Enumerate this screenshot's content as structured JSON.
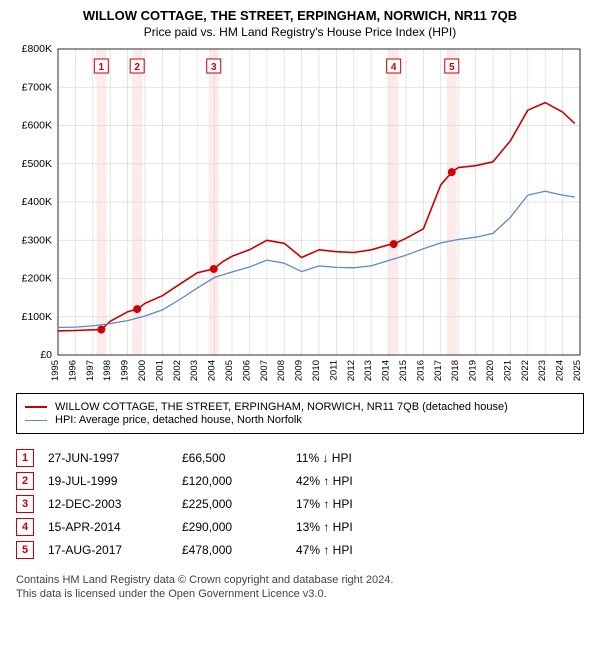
{
  "title": "WILLOW COTTAGE, THE STREET, ERPINGHAM, NORWICH, NR11 7QB",
  "subtitle": "Price paid vs. HM Land Registry's House Price Index (HPI)",
  "chart": {
    "type": "line",
    "background_color": "#ffffff",
    "grid_color": "#d9d9d9",
    "band_color": "#e8eef6",
    "band_color_alt": "#fde9e9",
    "axis_color": "#000000",
    "xlim": [
      1995,
      2025
    ],
    "ylim": [
      0,
      800000
    ],
    "ytick_step": 100000,
    "ytick_prefix": "£",
    "ytick_suffix": "K",
    "xticks": [
      1995,
      1996,
      1997,
      1998,
      1999,
      2000,
      2001,
      2002,
      2003,
      2004,
      2005,
      2006,
      2007,
      2008,
      2009,
      2010,
      2011,
      2012,
      2013,
      2014,
      2015,
      2016,
      2017,
      2018,
      2019,
      2020,
      2021,
      2022,
      2023,
      2024,
      2025
    ],
    "series": [
      {
        "id": "subject",
        "label": "WILLOW COTTAGE, THE STREET, ERPINGHAM, NORWICH, NR11 7QB (detached house)",
        "color": "#cc0000",
        "line_width": 1.6,
        "data": [
          [
            1995.0,
            63000
          ],
          [
            1996.0,
            64000
          ],
          [
            1997.0,
            66000
          ],
          [
            1997.5,
            66500
          ],
          [
            1998.0,
            88000
          ],
          [
            1999.0,
            113000
          ],
          [
            1999.55,
            120000
          ],
          [
            2000.0,
            135000
          ],
          [
            2001.0,
            155000
          ],
          [
            2002.0,
            185000
          ],
          [
            2003.0,
            215000
          ],
          [
            2003.95,
            225000
          ],
          [
            2004.5,
            245000
          ],
          [
            2005.0,
            258000
          ],
          [
            2006.0,
            275000
          ],
          [
            2007.0,
            300000
          ],
          [
            2008.0,
            292000
          ],
          [
            2009.0,
            255000
          ],
          [
            2010.0,
            275000
          ],
          [
            2011.0,
            270000
          ],
          [
            2012.0,
            268000
          ],
          [
            2013.0,
            275000
          ],
          [
            2014.0,
            288000
          ],
          [
            2014.29,
            290000
          ],
          [
            2015.0,
            305000
          ],
          [
            2016.0,
            330000
          ],
          [
            2017.0,
            445000
          ],
          [
            2017.63,
            478000
          ],
          [
            2018.0,
            490000
          ],
          [
            2019.0,
            495000
          ],
          [
            2020.0,
            505000
          ],
          [
            2021.0,
            560000
          ],
          [
            2022.0,
            640000
          ],
          [
            2023.0,
            660000
          ],
          [
            2024.0,
            635000
          ],
          [
            2024.7,
            605000
          ]
        ]
      },
      {
        "id": "hpi",
        "label": "HPI: Average price, detached house, North Norfolk",
        "color": "#5b8ac6",
        "line_width": 1.3,
        "data": [
          [
            1995.0,
            72000
          ],
          [
            1996.0,
            73000
          ],
          [
            1997.0,
            76000
          ],
          [
            1998.0,
            82000
          ],
          [
            1999.0,
            90000
          ],
          [
            2000.0,
            102000
          ],
          [
            2001.0,
            118000
          ],
          [
            2002.0,
            145000
          ],
          [
            2003.0,
            175000
          ],
          [
            2004.0,
            203000
          ],
          [
            2005.0,
            217000
          ],
          [
            2006.0,
            230000
          ],
          [
            2007.0,
            248000
          ],
          [
            2008.0,
            240000
          ],
          [
            2009.0,
            218000
          ],
          [
            2010.0,
            233000
          ],
          [
            2011.0,
            229000
          ],
          [
            2012.0,
            228000
          ],
          [
            2013.0,
            233000
          ],
          [
            2014.0,
            247000
          ],
          [
            2015.0,
            261000
          ],
          [
            2016.0,
            278000
          ],
          [
            2017.0,
            293000
          ],
          [
            2018.0,
            302000
          ],
          [
            2019.0,
            308000
          ],
          [
            2020.0,
            318000
          ],
          [
            2021.0,
            360000
          ],
          [
            2022.0,
            418000
          ],
          [
            2023.0,
            428000
          ],
          [
            2024.0,
            418000
          ],
          [
            2024.7,
            413000
          ]
        ]
      }
    ],
    "markers": [
      {
        "n": "1",
        "x": 1997.49,
        "y": 66500
      },
      {
        "n": "2",
        "x": 1999.55,
        "y": 120000
      },
      {
        "n": "3",
        "x": 2003.95,
        "y": 225000
      },
      {
        "n": "4",
        "x": 2014.29,
        "y": 290000
      },
      {
        "n": "5",
        "x": 2017.63,
        "y": 478000
      }
    ],
    "marker_color": "#cc0000",
    "marker_radius": 4
  },
  "legend": [
    {
      "label": "WILLOW COTTAGE, THE STREET, ERPINGHAM, NORWICH, NR11 7QB (detached house)",
      "color": "#cc0000",
      "width": 2
    },
    {
      "label": "HPI: Average price, detached house, North Norfolk",
      "color": "#5b8ac6",
      "width": 1.5
    }
  ],
  "transactions": [
    {
      "n": "1",
      "date": "27-JUN-1997",
      "price": "£66,500",
      "diff": "11% ↓ HPI"
    },
    {
      "n": "2",
      "date": "19-JUL-1999",
      "price": "£120,000",
      "diff": "42% ↑ HPI"
    },
    {
      "n": "3",
      "date": "12-DEC-2003",
      "price": "£225,000",
      "diff": "17% ↑ HPI"
    },
    {
      "n": "4",
      "date": "15-APR-2014",
      "price": "£290,000",
      "diff": "13% ↑ HPI"
    },
    {
      "n": "5",
      "date": "17-AUG-2017",
      "price": "£478,000",
      "diff": "47% ↑ HPI"
    }
  ],
  "footer_line1": "Contains HM Land Registry data © Crown copyright and database right 2024.",
  "footer_line2": "This data is licensed under the Open Government Licence v3.0."
}
